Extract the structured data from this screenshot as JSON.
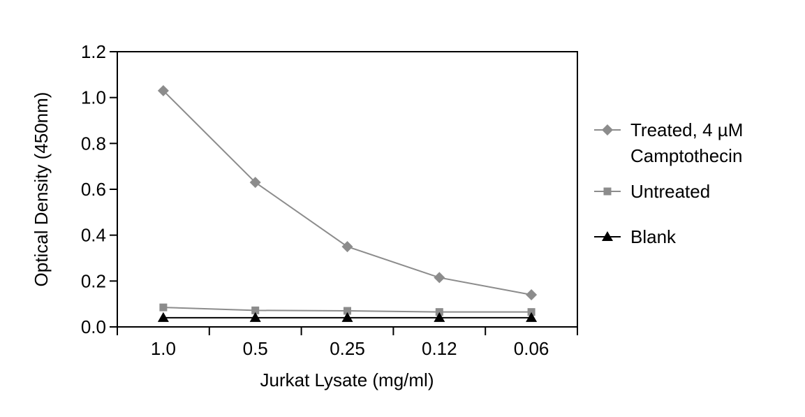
{
  "chart_data": {
    "type": "line",
    "categories": [
      "1.0",
      "0.5",
      "0.25",
      "0.12",
      "0.06"
    ],
    "series": [
      {
        "name": "Treated, 4 µM Camptothecin",
        "name_lines": [
          "Treated, 4 µM",
          "Camptothecin"
        ],
        "marker": "diamond",
        "color": "#8c8c8c",
        "values": [
          1.03,
          0.63,
          0.35,
          0.215,
          0.14
        ]
      },
      {
        "name": "Untreated",
        "name_lines": [
          "Untreated"
        ],
        "marker": "square",
        "color": "#8c8c8c",
        "values": [
          0.085,
          0.072,
          0.07,
          0.065,
          0.065
        ]
      },
      {
        "name": "Blank",
        "name_lines": [
          "Blank"
        ],
        "marker": "triangle",
        "color": "#000000",
        "values": [
          0.04,
          0.04,
          0.04,
          0.04,
          0.04
        ]
      }
    ],
    "xlabel": "Jurkat Lysate (mg/ml)",
    "ylabel": "Optical Density (450nm)",
    "ylim": [
      0,
      1.2
    ],
    "yticks": [
      "0.0",
      "0.2",
      "0.4",
      "0.6",
      "0.8",
      "1.0",
      "1.2"
    ],
    "grid": false,
    "legend": "right"
  }
}
